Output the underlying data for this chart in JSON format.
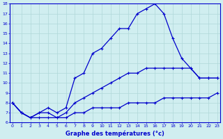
{
  "xlabel": "Graphe des températures (°c)",
  "hours": [
    0,
    1,
    2,
    3,
    4,
    5,
    6,
    7,
    8,
    9,
    10,
    11,
    12,
    13,
    14,
    15,
    16,
    17,
    18,
    19,
    20,
    21,
    22,
    23
  ],
  "temp_max": [
    8,
    7,
    6.5,
    7,
    7.5,
    7,
    7.5,
    10.5,
    11,
    13,
    13.5,
    14.5,
    15.5,
    15.5,
    17,
    17.5,
    18,
    17,
    14.5,
    12.5,
    11.5,
    10.5,
    10.5,
    10.5
  ],
  "temp_mean": [
    8,
    7,
    6.5,
    7,
    7,
    6.5,
    7,
    8,
    8.5,
    9,
    9.5,
    10,
    10.5,
    11,
    11,
    11.5,
    11.5,
    11.5,
    11.5,
    11.5,
    11.5,
    10.5,
    10.5,
    10.5
  ],
  "temp_min": [
    8,
    7,
    6.5,
    6.5,
    6.5,
    6.5,
    6.5,
    7,
    7,
    7.5,
    7.5,
    7.5,
    7.5,
    8,
    8,
    8,
    8,
    8.5,
    8.5,
    8.5,
    8.5,
    8.5,
    8.5,
    9
  ],
  "line_color": "#0000cc",
  "bg_color": "#d0eef0",
  "grid_color": "#b0d8d8",
  "ylim": [
    6,
    18
  ],
  "yticks": [
    6,
    7,
    8,
    9,
    10,
    11,
    12,
    13,
    14,
    15,
    16,
    17,
    18
  ],
  "xticks": [
    0,
    1,
    2,
    3,
    4,
    5,
    6,
    7,
    8,
    9,
    10,
    11,
    12,
    13,
    14,
    15,
    16,
    17,
    18,
    19,
    20,
    21,
    22,
    23
  ]
}
